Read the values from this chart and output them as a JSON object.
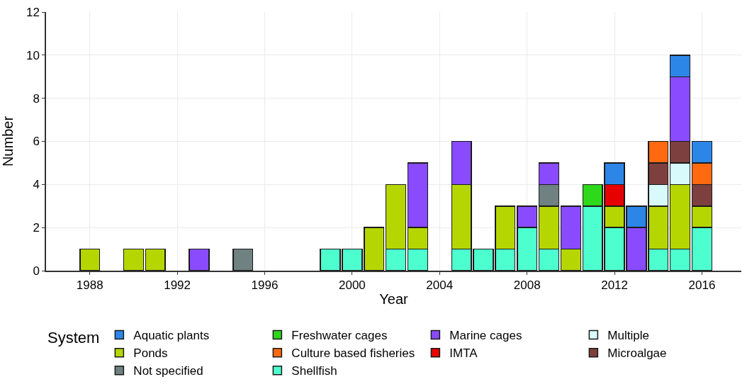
{
  "chart_data": {
    "type": "bar",
    "stacked": true,
    "xlabel": "Year",
    "ylabel": "Number",
    "legend_title": "System",
    "x": [
      1988,
      1990,
      1991,
      1993,
      1995,
      1999,
      2000,
      2001,
      2002,
      2003,
      2005,
      2006,
      2007,
      2008,
      2009,
      2010,
      2011,
      2012,
      2013,
      2014,
      2015,
      2016
    ],
    "xlim": [
      1986,
      2017.8
    ],
    "xticks": [
      1988,
      1992,
      1996,
      2000,
      2004,
      2008,
      2012,
      2016
    ],
    "ylim": [
      0,
      12
    ],
    "yticks": [
      0,
      2,
      4,
      6,
      8,
      10,
      12
    ],
    "grid": true,
    "legend": "bottom",
    "series": [
      {
        "name": "Shellfish",
        "color": "#4dffcf",
        "values": [
          null,
          null,
          null,
          null,
          null,
          1,
          1,
          null,
          1,
          1,
          1,
          1,
          1,
          2,
          1,
          null,
          3,
          2,
          null,
          1,
          1,
          2
        ]
      },
      {
        "name": "Ponds",
        "color": "#b5d600",
        "values": [
          1,
          1,
          1,
          null,
          null,
          null,
          null,
          2,
          3,
          1,
          3,
          null,
          2,
          null,
          2,
          1,
          null,
          1,
          null,
          2,
          3,
          1
        ]
      },
      {
        "name": "Not specified",
        "color": "#6f8181",
        "values": [
          null,
          null,
          null,
          null,
          1,
          null,
          null,
          null,
          null,
          null,
          null,
          null,
          null,
          null,
          1,
          null,
          null,
          null,
          null,
          null,
          null,
          null
        ]
      },
      {
        "name": "Multiple",
        "color": "#d8fafa",
        "values": [
          null,
          null,
          null,
          null,
          null,
          null,
          null,
          null,
          null,
          null,
          null,
          null,
          null,
          null,
          null,
          null,
          null,
          null,
          null,
          1,
          1,
          null
        ]
      },
      {
        "name": "Microalgae",
        "color": "#7e3f3f",
        "values": [
          null,
          null,
          null,
          null,
          null,
          null,
          null,
          null,
          null,
          null,
          null,
          null,
          null,
          null,
          null,
          null,
          null,
          null,
          null,
          1,
          1,
          1
        ]
      },
      {
        "name": "Marine cages",
        "color": "#8a4bff",
        "values": [
          null,
          null,
          null,
          1,
          null,
          null,
          null,
          null,
          null,
          3,
          2,
          null,
          null,
          1,
          1,
          2,
          null,
          null,
          2,
          null,
          3,
          null
        ]
      },
      {
        "name": "IMTA",
        "color": "#e60000",
        "values": [
          null,
          null,
          null,
          null,
          null,
          null,
          null,
          null,
          null,
          null,
          null,
          null,
          null,
          null,
          null,
          null,
          null,
          1,
          null,
          null,
          null,
          null
        ]
      },
      {
        "name": "Freshwater cages",
        "color": "#2ed81a",
        "values": [
          null,
          null,
          null,
          null,
          null,
          null,
          null,
          null,
          null,
          null,
          null,
          null,
          null,
          null,
          null,
          null,
          1,
          null,
          null,
          null,
          null,
          null
        ]
      },
      {
        "name": "Culture based fisheries",
        "color": "#ff6a10",
        "values": [
          null,
          null,
          null,
          null,
          null,
          null,
          null,
          null,
          null,
          null,
          null,
          null,
          null,
          null,
          null,
          null,
          null,
          null,
          null,
          1,
          null,
          1
        ]
      },
      {
        "name": "Aquatic plants",
        "color": "#2b86e8",
        "values": [
          null,
          null,
          null,
          null,
          null,
          null,
          null,
          null,
          null,
          null,
          null,
          null,
          null,
          null,
          null,
          null,
          null,
          1,
          1,
          null,
          1,
          1
        ]
      }
    ]
  }
}
